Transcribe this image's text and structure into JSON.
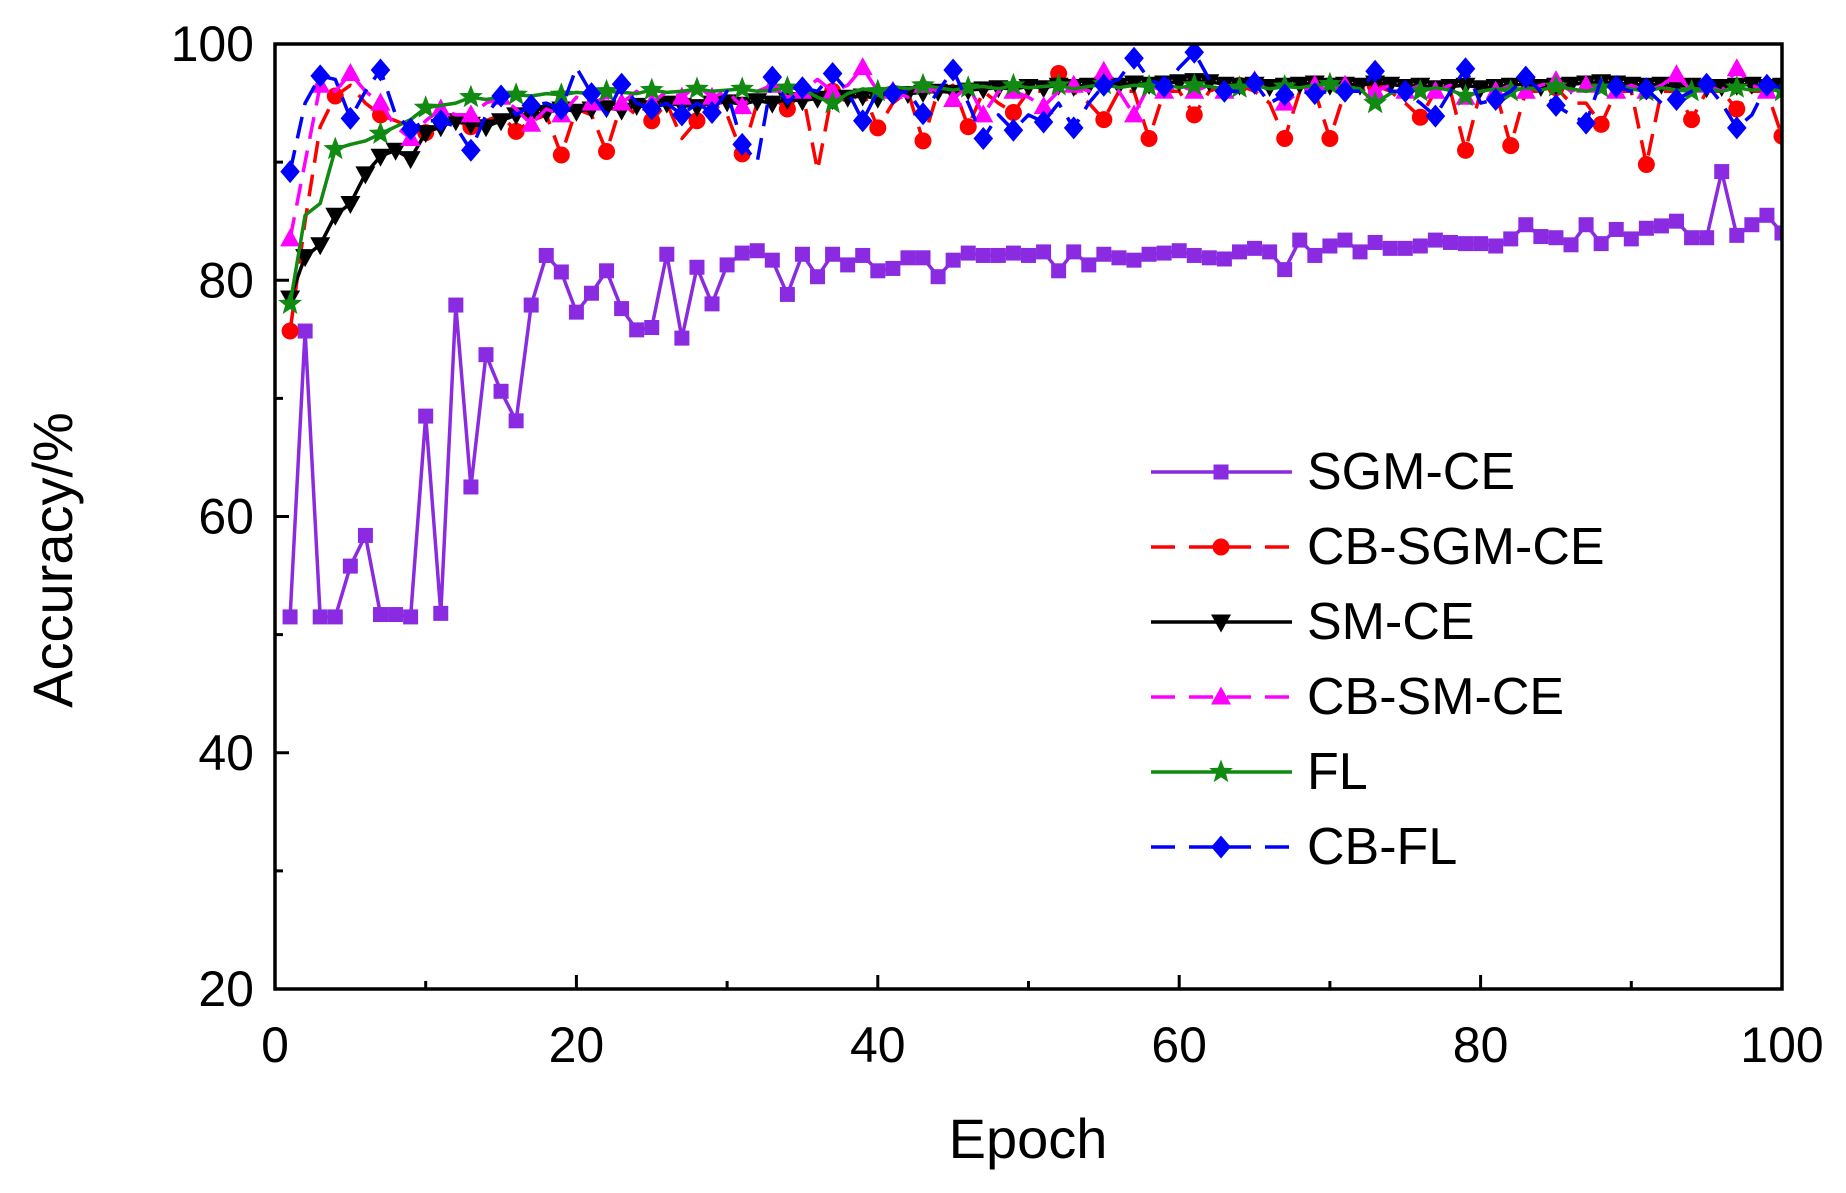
{
  "chart_data": {
    "type": "line",
    "title": "",
    "xlabel": "Epoch",
    "ylabel": "Accuracy/%",
    "xlim": [
      0,
      100
    ],
    "ylim": [
      20,
      100
    ],
    "xticks": [
      0,
      20,
      40,
      60,
      80,
      100
    ],
    "xtick_labels": [
      "0",
      "20",
      "40",
      "60",
      "80",
      "100"
    ],
    "xticks_minor": [
      10,
      30,
      50,
      70,
      90
    ],
    "yticks": [
      20,
      40,
      60,
      80,
      100
    ],
    "ytick_labels": [
      "20",
      "40",
      "60",
      "80",
      "100"
    ],
    "yticks_minor": [
      30,
      50,
      70,
      90
    ],
    "grid": false,
    "x": [
      1,
      2,
      3,
      4,
      5,
      6,
      7,
      8,
      9,
      10,
      11,
      12,
      13,
      14,
      15,
      16,
      17,
      18,
      19,
      20,
      21,
      22,
      23,
      24,
      25,
      26,
      27,
      28,
      29,
      30,
      31,
      32,
      33,
      34,
      35,
      36,
      37,
      38,
      39,
      40,
      41,
      42,
      43,
      44,
      45,
      46,
      47,
      48,
      49,
      50,
      51,
      52,
      53,
      54,
      55,
      56,
      57,
      58,
      59,
      60,
      61,
      62,
      63,
      64,
      65,
      66,
      67,
      68,
      69,
      70,
      71,
      72,
      73,
      74,
      75,
      76,
      77,
      78,
      79,
      80,
      81,
      82,
      83,
      84,
      85,
      86,
      87,
      88,
      89,
      90,
      91,
      92,
      93,
      94,
      95,
      96,
      97,
      98,
      99,
      100
    ],
    "series": [
      {
        "name": "SGM-CE",
        "color": "#8A2BE2",
        "marker": "square",
        "dashed": false,
        "values": [
          51.5,
          75.7,
          51.5,
          51.5,
          55.8,
          58.4,
          51.7,
          51.7,
          51.5,
          68.5,
          51.8,
          77.9,
          62.5,
          73.7,
          70.6,
          68.1,
          77.9,
          82.1,
          80.7,
          77.3,
          78.9,
          80.8,
          77.6,
          75.8,
          76.0,
          82.2,
          75.1,
          81.1,
          78.0,
          81.3,
          82.3,
          82.5,
          81.7,
          78.8,
          82.2,
          80.3,
          82.2,
          81.3,
          82.1,
          80.8,
          81.0,
          81.9,
          81.9,
          80.3,
          81.7,
          82.3,
          82.1,
          82.1,
          82.3,
          82.1,
          82.4,
          80.8,
          82.4,
          81.3,
          82.2,
          81.9,
          81.7,
          82.2,
          82.3,
          82.5,
          82.1,
          81.9,
          81.8,
          82.4,
          82.7,
          82.4,
          80.9,
          83.4,
          82.1,
          82.9,
          83.4,
          82.4,
          83.2,
          82.7,
          82.7,
          82.9,
          83.4,
          83.2,
          83.1,
          83.1,
          82.9,
          83.5,
          84.7,
          83.7,
          83.6,
          83.0,
          84.7,
          83.1,
          84.3,
          83.5,
          84.4,
          84.6,
          85.0,
          83.6,
          83.6,
          89.2,
          83.8,
          84.7,
          85.5,
          84.0
        ]
      },
      {
        "name": "CB-SGM-CE",
        "color": "#FF0000",
        "marker": "circle",
        "dashed": true,
        "values": [
          75.7,
          85.0,
          93.0,
          95.6,
          96.5,
          95.0,
          94.0,
          93.5,
          93.0,
          92.5,
          93.0,
          93.5,
          93.0,
          93.5,
          94.0,
          92.6,
          93.5,
          94.0,
          90.6,
          94.5,
          94.0,
          90.9,
          95.0,
          94.0,
          93.5,
          95.0,
          92.0,
          93.5,
          95.0,
          94.0,
          90.7,
          95.0,
          95.5,
          94.5,
          96.0,
          89.3,
          96.0,
          95.0,
          96.0,
          92.9,
          95.0,
          96.0,
          91.8,
          96.0,
          96.5,
          93.0,
          96.0,
          95.0,
          94.2,
          96.0,
          96.0,
          97.5,
          96.0,
          95.0,
          93.6,
          96.0,
          96.0,
          92.0,
          96.0,
          96.0,
          94.0,
          96.0,
          96.5,
          96.5,
          96.0,
          95.0,
          92.0,
          96.0,
          96.0,
          92.0,
          96.0,
          96.0,
          96.5,
          96.0,
          95.0,
          93.8,
          96.0,
          96.0,
          91.0,
          96.0,
          96.0,
          91.4,
          96.0,
          96.0,
          96.3,
          95.0,
          95.0,
          93.2,
          96.0,
          96.0,
          89.8,
          96.0,
          96.0,
          93.6,
          96.0,
          96.0,
          94.5,
          96.0,
          96.0,
          92.2
        ]
      },
      {
        "name": "SM-CE",
        "color": "#000000",
        "marker": "triangle-down",
        "dashed": false,
        "values": [
          78.5,
          82.0,
          83.0,
          85.5,
          86.5,
          89.0,
          90.5,
          91.0,
          90.3,
          92.5,
          93.0,
          93.5,
          93.2,
          93.0,
          93.5,
          94.0,
          94.0,
          94.2,
          94.5,
          94.3,
          94.5,
          94.6,
          94.4,
          94.8,
          94.6,
          95.0,
          94.8,
          94.7,
          95.0,
          95.1,
          94.9,
          95.2,
          95.0,
          95.3,
          95.2,
          95.4,
          95.3,
          95.5,
          95.6,
          95.4,
          95.7,
          95.8,
          95.9,
          96.0,
          95.9,
          96.1,
          96.2,
          96.3,
          96.2,
          96.4,
          96.3,
          96.5,
          96.4,
          96.5,
          96.6,
          96.5,
          96.7,
          96.6,
          96.7,
          96.8,
          96.9,
          96.8,
          96.6,
          96.5,
          96.6,
          96.4,
          96.5,
          96.6,
          96.7,
          96.5,
          96.6,
          96.5,
          96.7,
          96.6,
          96.4,
          96.5,
          96.3,
          96.4,
          96.5,
          96.3,
          96.4,
          96.5,
          96.6,
          96.4,
          96.5,
          96.6,
          96.7,
          96.8,
          96.7,
          96.6,
          96.5,
          96.6,
          96.4,
          96.5,
          96.3,
          96.4,
          96.5,
          96.6,
          96.4,
          96.5
        ]
      },
      {
        "name": "CB-SM-CE",
        "color": "#FF00FF",
        "marker": "triangle-up",
        "dashed": true,
        "values": [
          83.5,
          90.0,
          96.5,
          96.0,
          97.5,
          96.0,
          95.0,
          93.0,
          92.0,
          93.5,
          94.5,
          94.0,
          94.0,
          95.0,
          95.5,
          94.5,
          93.2,
          94.5,
          94.0,
          95.5,
          95.0,
          95.5,
          95.0,
          96.0,
          95.0,
          96.0,
          95.5,
          96.5,
          95.5,
          96.0,
          94.7,
          96.0,
          96.5,
          95.5,
          96.0,
          97.0,
          96.0,
          96.5,
          98.0,
          96.0,
          96.0,
          95.5,
          96.5,
          96.0,
          95.3,
          96.5,
          94.0,
          96.0,
          96.0,
          95.5,
          94.7,
          96.0,
          96.5,
          96.0,
          97.7,
          96.0,
          94.0,
          96.5,
          96.0,
          96.5,
          96.0,
          96.5,
          96.0,
          96.5,
          96.9,
          96.0,
          95.0,
          96.0,
          96.5,
          96.0,
          96.5,
          96.0,
          96.0,
          96.5,
          96.0,
          96.5,
          96.0,
          96.5,
          95.5,
          96.0,
          96.0,
          96.5,
          96.0,
          96.5,
          96.9,
          96.0,
          96.5,
          96.0,
          96.0,
          96.5,
          96.0,
          96.5,
          97.4,
          96.0,
          96.5,
          96.0,
          97.9,
          96.5,
          96.0,
          96.0
        ]
      },
      {
        "name": "FL",
        "color": "#108A10",
        "marker": "star",
        "dashed": false,
        "values": [
          78.0,
          85.5,
          86.5,
          91.1,
          91.5,
          91.8,
          92.4,
          93.0,
          93.6,
          94.6,
          94.8,
          95.0,
          95.5,
          95.3,
          95.5,
          95.7,
          95.6,
          95.8,
          95.7,
          95.9,
          95.8,
          96.0,
          95.9,
          95.8,
          96.1,
          95.9,
          96.0,
          96.2,
          96.0,
          96.1,
          96.2,
          96.0,
          96.1,
          96.3,
          96.2,
          95.5,
          95.0,
          95.8,
          96.2,
          96.0,
          96.4,
          96.2,
          96.5,
          96.3,
          96.1,
          96.3,
          96.4,
          96.2,
          96.5,
          96.3,
          96.4,
          96.5,
          96.2,
          96.4,
          96.6,
          96.3,
          96.5,
          96.4,
          96.6,
          96.3,
          96.5,
          96.4,
          96.2,
          96.3,
          96.5,
          96.2,
          96.4,
          96.3,
          96.5,
          96.6,
          96.4,
          96.2,
          95.0,
          95.8,
          96.2,
          96.0,
          96.3,
          96.1,
          95.6,
          96.0,
          96.2,
          96.0,
          96.3,
          96.1,
          96.4,
          96.2,
          96.0,
          96.3,
          96.5,
          96.2,
          96.0,
          96.3,
          96.1,
          96.0,
          96.2,
          96.0,
          96.3,
          96.1,
          96.2,
          96.0
        ]
      },
      {
        "name": "CB-FL",
        "color": "#0000FF",
        "marker": "diamond",
        "dashed": true,
        "values": [
          89.2,
          95.0,
          97.3,
          97.0,
          93.7,
          96.0,
          97.8,
          94.0,
          92.8,
          93.5,
          93.5,
          93.0,
          91.0,
          94.0,
          95.6,
          94.0,
          94.8,
          95.0,
          94.5,
          98.0,
          95.8,
          94.0,
          96.6,
          95.0,
          94.5,
          95.0,
          94.0,
          95.0,
          94.2,
          96.0,
          91.5,
          90.0,
          97.2,
          95.0,
          96.3,
          96.0,
          97.5,
          96.0,
          93.5,
          96.0,
          95.8,
          96.0,
          94.1,
          96.0,
          97.8,
          95.0,
          92.0,
          94.0,
          92.7,
          94.0,
          93.4,
          95.0,
          92.9,
          95.0,
          96.5,
          97.0,
          98.8,
          97.0,
          96.4,
          98.0,
          99.3,
          97.0,
          96.0,
          96.0,
          96.7,
          95.0,
          95.7,
          96.0,
          95.8,
          96.0,
          96.0,
          96.0,
          97.7,
          96.0,
          96.0,
          95.0,
          93.9,
          96.0,
          97.9,
          95.0,
          95.3,
          96.0,
          97.2,
          96.0,
          94.8,
          94.0,
          93.3,
          97.0,
          96.4,
          96.0,
          96.2,
          95.0,
          95.3,
          96.0,
          96.6,
          95.0,
          92.9,
          94.0,
          96.5,
          96.3
        ]
      }
    ]
  }
}
